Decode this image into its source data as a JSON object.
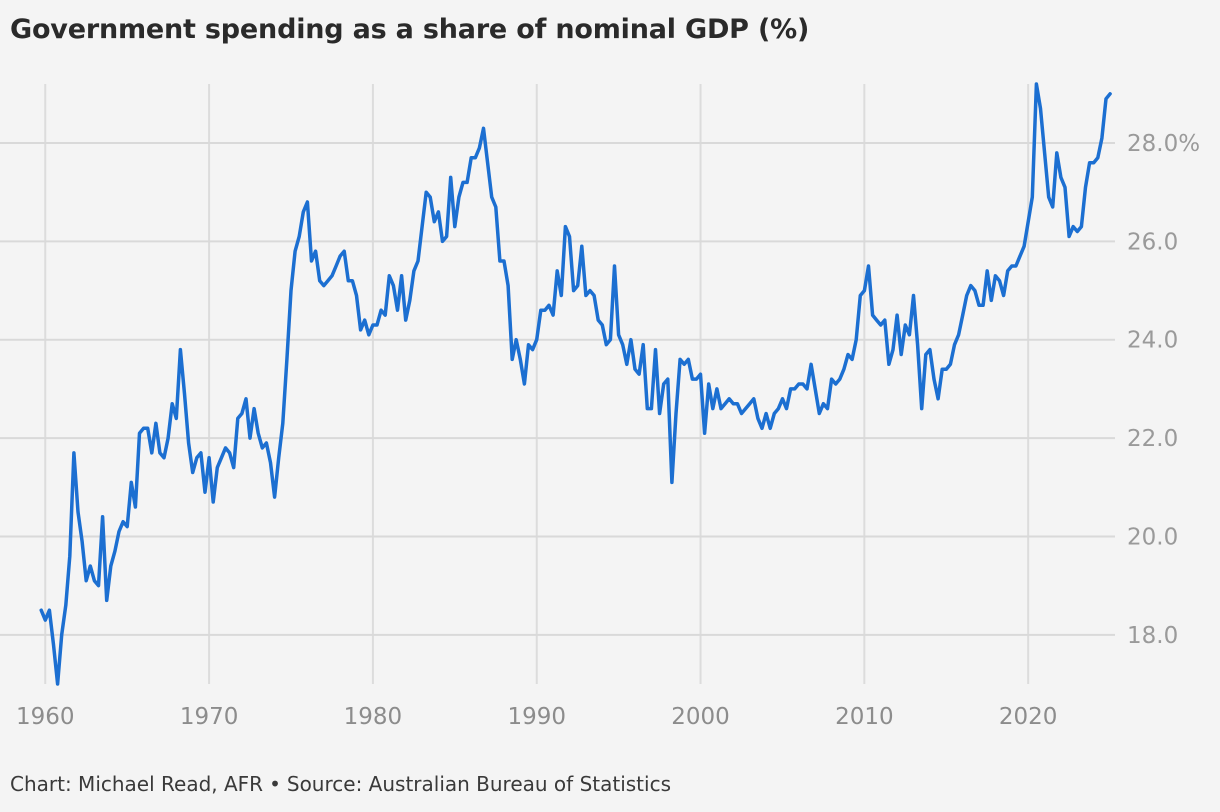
{
  "title": "Government spending as a share of nominal GDP (%)",
  "footer": {
    "credit": "Chart: Michael Read, AFR",
    "separator": "•",
    "source": "Source: Australian Bureau of Statistics"
  },
  "colors": {
    "line": "#1c6fd1",
    "background": "#f4f4f4"
  },
  "chart_data": {
    "type": "line",
    "title": "Government spending as a share of nominal GDP (%)",
    "xlabel": "",
    "ylabel": "",
    "x_ticks": [
      1960,
      1970,
      1980,
      1990,
      2000,
      2010,
      2020
    ],
    "x_tick_labels": [
      "1960",
      "1970",
      "1980",
      "1990",
      "2000",
      "2010",
      "2020"
    ],
    "y_ticks": [
      18,
      20,
      22,
      24,
      26,
      28
    ],
    "y_tick_labels": [
      "18.0",
      "20.0",
      "22.0",
      "24.0",
      "26.0",
      "28.0%"
    ],
    "xlim": [
      1959.8,
      2025.3
    ],
    "ylim": [
      17,
      29.2
    ],
    "grid": true,
    "y_axis_side": "right",
    "series": [
      {
        "color": "#1c6fd1",
        "x": [
          1959.75,
          1960.0,
          1960.25,
          1960.5,
          1960.75,
          1961.0,
          1961.25,
          1961.5,
          1961.75,
          1962.0,
          1962.25,
          1962.5,
          1962.75,
          1963.0,
          1963.25,
          1963.5,
          1963.75,
          1964.0,
          1964.25,
          1964.5,
          1964.75,
          1965.0,
          1965.25,
          1965.5,
          1965.75,
          1966.0,
          1966.25,
          1966.5,
          1966.75,
          1967.0,
          1967.25,
          1967.5,
          1967.75,
          1968.0,
          1968.25,
          1968.5,
          1968.75,
          1969.0,
          1969.25,
          1969.5,
          1969.75,
          1970.0,
          1970.25,
          1970.5,
          1970.75,
          1971.0,
          1971.25,
          1971.5,
          1971.75,
          1972.0,
          1972.25,
          1972.5,
          1972.75,
          1973.0,
          1973.25,
          1973.5,
          1973.75,
          1974.0,
          1974.25,
          1974.5,
          1974.75,
          1975.0,
          1975.25,
          1975.5,
          1975.75,
          1976.0,
          1976.25,
          1976.5,
          1976.75,
          1977.0,
          1977.25,
          1977.5,
          1977.75,
          1978.0,
          1978.25,
          1978.5,
          1978.75,
          1979.0,
          1979.25,
          1979.5,
          1979.75,
          1980.0,
          1980.25,
          1980.5,
          1980.75,
          1981.0,
          1981.25,
          1981.5,
          1981.75,
          1982.0,
          1982.25,
          1982.5,
          1982.75,
          1983.0,
          1983.25,
          1983.5,
          1983.75,
          1984.0,
          1984.25,
          1984.5,
          1984.75,
          1985.0,
          1985.25,
          1985.5,
          1985.75,
          1986.0,
          1986.25,
          1986.5,
          1986.75,
          1987.0,
          1987.25,
          1987.5,
          1987.75,
          1988.0,
          1988.25,
          1988.5,
          1988.75,
          1989.0,
          1989.25,
          1989.5,
          1989.75,
          1990.0,
          1990.25,
          1990.5,
          1990.75,
          1991.0,
          1991.25,
          1991.5,
          1991.75,
          1992.0,
          1992.25,
          1992.5,
          1992.75,
          1993.0,
          1993.25,
          1993.5,
          1993.75,
          1994.0,
          1994.25,
          1994.5,
          1994.75,
          1995.0,
          1995.25,
          1995.5,
          1995.75,
          1996.0,
          1996.25,
          1996.5,
          1996.75,
          1997.0,
          1997.25,
          1997.5,
          1997.75,
          1998.0,
          1998.25,
          1998.5,
          1998.75,
          1999.0,
          1999.25,
          1999.5,
          1999.75,
          2000.0,
          2000.25,
          2000.5,
          2000.75,
          2001.0,
          2001.25,
          2001.5,
          2001.75,
          2002.0,
          2002.25,
          2002.5,
          2002.75,
          2003.0,
          2003.25,
          2003.5,
          2003.75,
          2004.0,
          2004.25,
          2004.5,
          2004.75,
          2005.0,
          2005.25,
          2005.5,
          2005.75,
          2006.0,
          2006.25,
          2006.5,
          2006.75,
          2007.0,
          2007.25,
          2007.5,
          2007.75,
          2008.0,
          2008.25,
          2008.5,
          2008.75,
          2009.0,
          2009.25,
          2009.5,
          2009.75,
          2010.0,
          2010.25,
          2010.5,
          2010.75,
          2011.0,
          2011.25,
          2011.5,
          2011.75,
          2012.0,
          2012.25,
          2012.5,
          2012.75,
          2013.0,
          2013.25,
          2013.5,
          2013.75,
          2014.0,
          2014.25,
          2014.5,
          2014.75,
          2015.0,
          2015.25,
          2015.5,
          2015.75,
          2016.0,
          2016.25,
          2016.5,
          2016.75,
          2017.0,
          2017.25,
          2017.5,
          2017.75,
          2018.0,
          2018.25,
          2018.5,
          2018.75,
          2019.0,
          2019.25,
          2019.5,
          2019.75,
          2020.0,
          2020.25,
          2020.5,
          2020.75,
          2021.0,
          2021.25,
          2021.5,
          2021.75,
          2022.0,
          2022.25,
          2022.5,
          2022.75,
          2023.0,
          2023.25,
          2023.5,
          2023.75,
          2024.0,
          2024.25,
          2024.5,
          2024.75,
          2025.0
        ],
        "values": [
          18.5,
          18.3,
          18.5,
          17.8,
          17.0,
          18.0,
          18.6,
          19.6,
          21.7,
          20.5,
          19.9,
          19.1,
          19.4,
          19.1,
          19.0,
          20.4,
          18.7,
          19.4,
          19.7,
          20.1,
          20.3,
          20.2,
          21.1,
          20.6,
          22.1,
          22.2,
          22.2,
          21.7,
          22.3,
          21.7,
          21.6,
          22.0,
          22.7,
          22.4,
          23.8,
          22.9,
          21.9,
          21.3,
          21.6,
          21.7,
          20.9,
          21.6,
          20.7,
          21.4,
          21.6,
          21.8,
          21.7,
          21.4,
          22.4,
          22.5,
          22.8,
          22.0,
          22.6,
          22.1,
          21.8,
          21.9,
          21.5,
          20.8,
          21.6,
          22.3,
          23.6,
          25.0,
          25.8,
          26.1,
          26.6,
          26.8,
          25.6,
          25.8,
          25.2,
          25.1,
          25.2,
          25.3,
          25.5,
          25.7,
          25.8,
          25.2,
          25.2,
          24.9,
          24.2,
          24.4,
          24.1,
          24.3,
          24.3,
          24.6,
          24.5,
          25.3,
          25.1,
          24.6,
          25.3,
          24.4,
          24.8,
          25.4,
          25.6,
          26.3,
          27.0,
          26.9,
          26.4,
          26.6,
          26.0,
          26.1,
          27.3,
          26.3,
          26.9,
          27.2,
          27.2,
          27.7,
          27.7,
          27.9,
          28.3,
          27.6,
          26.9,
          26.7,
          25.6,
          25.6,
          25.1,
          23.6,
          24.0,
          23.6,
          23.1,
          23.9,
          23.8,
          24.0,
          24.6,
          24.6,
          24.7,
          24.5,
          25.4,
          24.9,
          26.3,
          26.1,
          25.0,
          25.1,
          25.9,
          24.9,
          25.0,
          24.9,
          24.4,
          24.3,
          23.9,
          24.0,
          25.5,
          24.1,
          23.9,
          23.5,
          24.0,
          23.4,
          23.3,
          23.9,
          22.6,
          22.6,
          23.8,
          22.5,
          23.1,
          23.2,
          21.1,
          22.5,
          23.6,
          23.5,
          23.6,
          23.2,
          23.2,
          23.3,
          22.1,
          23.1,
          22.6,
          23.0,
          22.6,
          22.7,
          22.8,
          22.7,
          22.7,
          22.5,
          22.6,
          22.7,
          22.8,
          22.4,
          22.2,
          22.5,
          22.2,
          22.5,
          22.6,
          22.8,
          22.6,
          23.0,
          23.0,
          23.1,
          23.1,
          23.0,
          23.5,
          23.0,
          22.5,
          22.7,
          22.6,
          23.2,
          23.1,
          23.2,
          23.4,
          23.7,
          23.6,
          24.0,
          24.9,
          25.0,
          25.5,
          24.5,
          24.4,
          24.3,
          24.4,
          23.5,
          23.8,
          24.5,
          23.7,
          24.3,
          24.1,
          24.9,
          23.9,
          22.6,
          23.7,
          23.8,
          23.2,
          22.8,
          23.4,
          23.4,
          23.5,
          23.9,
          24.1,
          24.5,
          24.9,
          25.1,
          25.0,
          24.7,
          24.7,
          25.4,
          24.8,
          25.3,
          25.2,
          24.9,
          25.4,
          25.5,
          25.5,
          25.7,
          25.9,
          26.4,
          26.9,
          29.2,
          28.7,
          27.8,
          26.9,
          26.7,
          27.8,
          27.3,
          27.1,
          26.1,
          26.3,
          26.2,
          26.3,
          27.1,
          27.6,
          27.6,
          27.7,
          28.1,
          28.9,
          29.0
        ]
      }
    ]
  }
}
